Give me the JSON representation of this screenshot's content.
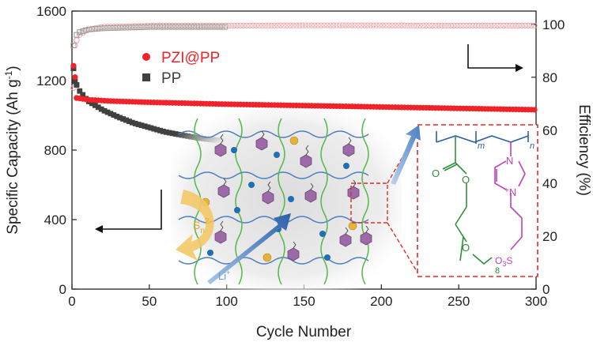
{
  "chart_data": {
    "type": "scatter",
    "xlabel": "Cycle Number",
    "ylabel_left": "Specific Capacity (Ah g",
    "ylabel_left_sup": "-1",
    "ylabel_left_end": ")",
    "ylabel_right": "Efficiency (%)",
    "xlim": [
      0,
      300
    ],
    "ylim_left": [
      0,
      1600
    ],
    "ylim_right": [
      0,
      105
    ],
    "x_ticks": [
      "0",
      "50",
      "100",
      "150",
      "200",
      "250",
      "300"
    ],
    "y_left_ticks": [
      "0",
      "400",
      "800",
      "1200",
      "1600"
    ],
    "y_right_ticks": [
      "0",
      "20",
      "40",
      "60",
      "80",
      "100"
    ],
    "grid": false,
    "legend_position": "top-left",
    "colors": {
      "pzi": "#f0232a",
      "pp": "#404040",
      "pzi_eff": "#f3a3a3",
      "pp_eff": "#9a9a9a"
    },
    "series": [
      {
        "name": "PZI@PP",
        "axis": "left",
        "marker": "circle",
        "color": "#f0232a",
        "points": [
          [
            1,
            1285
          ],
          [
            2,
            1220
          ],
          [
            3,
            1100
          ],
          [
            10,
            1090
          ],
          [
            25,
            1082
          ],
          [
            50,
            1075
          ],
          [
            100,
            1064
          ],
          [
            150,
            1056
          ],
          [
            200,
            1048
          ],
          [
            250,
            1040
          ],
          [
            300,
            1032
          ]
        ]
      },
      {
        "name": "PP",
        "axis": "left",
        "marker": "square",
        "color": "#404040",
        "points": [
          [
            1,
            1270
          ],
          [
            2,
            1195
          ],
          [
            3,
            1175
          ],
          [
            5,
            1140
          ],
          [
            10,
            1085
          ],
          [
            20,
            1030
          ],
          [
            30,
            990
          ],
          [
            40,
            955
          ],
          [
            50,
            930
          ],
          [
            60,
            905
          ],
          [
            70,
            888
          ],
          [
            80,
            872
          ],
          [
            90,
            860
          ],
          [
            100,
            852
          ]
        ]
      },
      {
        "name": "PZI@PP efficiency",
        "axis": "right",
        "marker": "open-circle",
        "color": "#f3a3a3",
        "points": [
          [
            1,
            76
          ],
          [
            2,
            92
          ],
          [
            3,
            94
          ],
          [
            5,
            96
          ],
          [
            10,
            98
          ],
          [
            20,
            99
          ],
          [
            50,
            99.5
          ],
          [
            100,
            99.5
          ],
          [
            150,
            99.6
          ],
          [
            200,
            99.6
          ],
          [
            250,
            99.5
          ],
          [
            300,
            99.5
          ]
        ]
      },
      {
        "name": "PP efficiency",
        "axis": "right",
        "marker": "open-square",
        "color": "#9a9a9a",
        "points": [
          [
            1,
            92
          ],
          [
            3,
            96
          ],
          [
            5,
            97
          ],
          [
            10,
            98
          ],
          [
            20,
            98.5
          ],
          [
            50,
            99
          ],
          [
            100,
            99
          ]
        ]
      }
    ],
    "inset": {
      "polysulfide_label": "S",
      "polysulfide_sub": "n",
      "polysulfide_sup": "2-",
      "li_label": "Li",
      "li_sup": "+",
      "structure_labels": {
        "O_top": "O",
        "O_ester": "O",
        "O_ether": "O",
        "m": "m",
        "n": "n",
        "x8": "8",
        "N_top": "N",
        "N_bottom": "N",
        "N_charge": "+",
        "sulfonate": "O",
        "sulfonate_sub": "3",
        "sulfonate_end": "S"
      }
    }
  }
}
